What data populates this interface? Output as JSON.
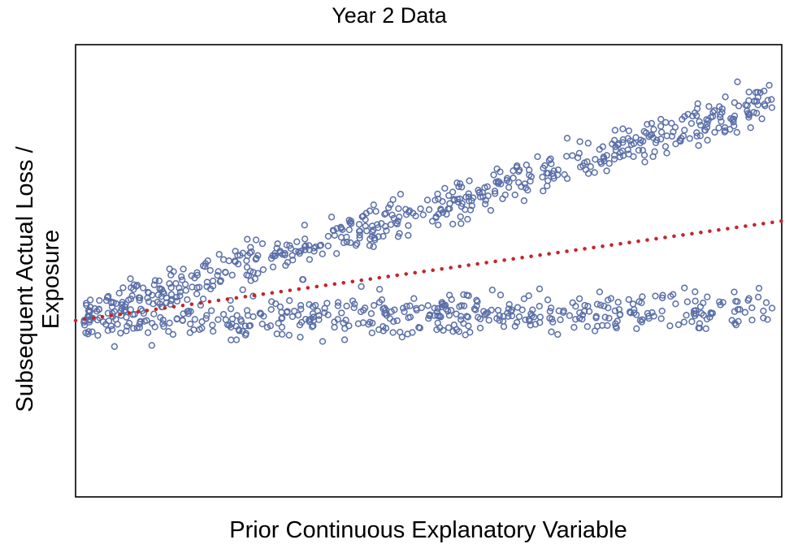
{
  "chart_data": {
    "type": "scatter",
    "title": "Year 2 Data",
    "xlabel": "Prior Continuous Explanatory Variable",
    "ylabel_lines": [
      "Subsequent Actual Loss /",
      "Exposure"
    ],
    "xlim": [
      0,
      1
    ],
    "ylim": [
      0,
      1
    ],
    "ticks_shown": false,
    "grid": false,
    "legend": "none",
    "point_count": 1000,
    "point_color": "#5a6fa8",
    "trend_color": "#c0282d",
    "series": [
      {
        "role": "points",
        "marker": "open-circle",
        "clusters": [
          {
            "y_at_x0": 0.39,
            "y_at_x1": 0.88,
            "spread": 0.04,
            "share": 0.55
          },
          {
            "y_at_x0": 0.39,
            "y_at_x1": 0.41,
            "spread": 0.04,
            "share": 0.45
          }
        ]
      },
      {
        "role": "trend",
        "style": "dotted",
        "x": [
          0,
          1
        ],
        "y": [
          0.39,
          0.61
        ]
      }
    ]
  }
}
